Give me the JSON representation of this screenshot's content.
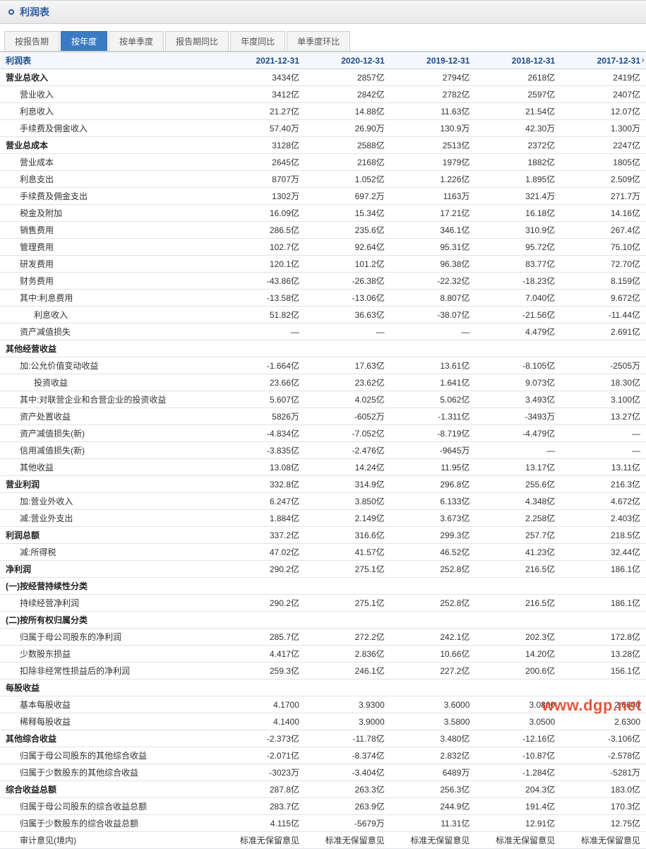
{
  "header": {
    "title": "利润表"
  },
  "tabs": {
    "items": [
      {
        "label": "按报告期",
        "active": false
      },
      {
        "label": "按年度",
        "active": true
      },
      {
        "label": "按单季度",
        "active": false
      },
      {
        "label": "报告期同比",
        "active": false
      },
      {
        "label": "年度同比",
        "active": false
      },
      {
        "label": "单季度环比",
        "active": false
      }
    ]
  },
  "columns": [
    "利润表",
    "2021-12-31",
    "2020-12-31",
    "2019-12-31",
    "2018-12-31",
    "2017-12-31"
  ],
  "col_widths": [
    "34%",
    "13.2%",
    "13.2%",
    "13.2%",
    "13.2%",
    "13.2%"
  ],
  "rows": [
    {
      "label": "营业总收入",
      "indent": 0,
      "bold": true,
      "v": [
        "3434亿",
        "2857亿",
        "2794亿",
        "2618亿",
        "2419亿"
      ]
    },
    {
      "label": "营业收入",
      "indent": 1,
      "v": [
        "3412亿",
        "2842亿",
        "2782亿",
        "2597亿",
        "2407亿"
      ]
    },
    {
      "label": "利息收入",
      "indent": 1,
      "v": [
        "21.27亿",
        "14.88亿",
        "11.63亿",
        "21.54亿",
        "12.07亿"
      ]
    },
    {
      "label": "手续费及佣金收入",
      "indent": 1,
      "v": [
        "57.40万",
        "26.90万",
        "130.9万",
        "42.30万",
        "1.300万"
      ]
    },
    {
      "label": "营业总成本",
      "indent": 0,
      "bold": true,
      "v": [
        "3128亿",
        "2588亿",
        "2513亿",
        "2372亿",
        "2247亿"
      ]
    },
    {
      "label": "营业成本",
      "indent": 1,
      "v": [
        "2645亿",
        "2168亿",
        "1979亿",
        "1882亿",
        "1805亿"
      ]
    },
    {
      "label": "利息支出",
      "indent": 1,
      "v": [
        "8707万",
        "1.052亿",
        "1.226亿",
        "1.895亿",
        "2.509亿"
      ]
    },
    {
      "label": "手续费及佣金支出",
      "indent": 1,
      "v": [
        "1302万",
        "697.2万",
        "1163万",
        "321.4万",
        "271.7万"
      ]
    },
    {
      "label": "税金及附加",
      "indent": 1,
      "v": [
        "16.09亿",
        "15.34亿",
        "17.21亿",
        "16.18亿",
        "14.16亿"
      ]
    },
    {
      "label": "销售费用",
      "indent": 1,
      "v": [
        "286.5亿",
        "235.6亿",
        "346.1亿",
        "310.9亿",
        "267.4亿"
      ]
    },
    {
      "label": "管理费用",
      "indent": 1,
      "v": [
        "102.7亿",
        "92.64亿",
        "95.31亿",
        "95.72亿",
        "75.10亿"
      ]
    },
    {
      "label": "研发费用",
      "indent": 1,
      "v": [
        "120.1亿",
        "101.2亿",
        "96.38亿",
        "83.77亿",
        "72.70亿"
      ]
    },
    {
      "label": "财务费用",
      "indent": 1,
      "v": [
        "-43.86亿",
        "-26.38亿",
        "-22.32亿",
        "-18.23亿",
        "8.159亿"
      ]
    },
    {
      "label": "其中:利息费用",
      "indent": 1,
      "v": [
        "-13.58亿",
        "-13.06亿",
        "8.807亿",
        "7.040亿",
        "9.672亿"
      ]
    },
    {
      "label": "利息收入",
      "indent": 2,
      "v": [
        "51.82亿",
        "36.63亿",
        "-38.07亿",
        "-21.56亿",
        "-11.44亿"
      ]
    },
    {
      "label": "资产减值损失",
      "indent": 1,
      "v": [
        "—",
        "—",
        "—",
        "4.479亿",
        "2.691亿"
      ]
    },
    {
      "label": "其他经营收益",
      "indent": 0,
      "bold": true,
      "v": [
        "",
        "",
        "",
        "",
        ""
      ]
    },
    {
      "label": "加:公允价值变动收益",
      "indent": 1,
      "v": [
        "-1.664亿",
        "17.63亿",
        "13.61亿",
        "-8.105亿",
        "-2505万"
      ]
    },
    {
      "label": "投资收益",
      "indent": 2,
      "v": [
        "23.66亿",
        "23.62亿",
        "1.641亿",
        "9.073亿",
        "18.30亿"
      ]
    },
    {
      "label": "其中:对联营企业和合营企业的投资收益",
      "indent": 1,
      "v": [
        "5.607亿",
        "4.025亿",
        "5.062亿",
        "3.493亿",
        "3.100亿"
      ]
    },
    {
      "label": "资产处置收益",
      "indent": 1,
      "v": [
        "5826万",
        "-6052万",
        "-1.311亿",
        "-3493万",
        "13.27亿"
      ]
    },
    {
      "label": "资产减值损失(新)",
      "indent": 1,
      "v": [
        "-4.834亿",
        "-7.052亿",
        "-8.719亿",
        "-4.479亿",
        "—"
      ]
    },
    {
      "label": "信用减值损失(新)",
      "indent": 1,
      "v": [
        "-3.835亿",
        "-2.476亿",
        "-9645万",
        "—",
        "—"
      ]
    },
    {
      "label": "其他收益",
      "indent": 1,
      "v": [
        "13.08亿",
        "14.24亿",
        "11.95亿",
        "13.17亿",
        "13.11亿"
      ]
    },
    {
      "label": "营业利润",
      "indent": 0,
      "bold": true,
      "v": [
        "332.8亿",
        "314.9亿",
        "296.8亿",
        "255.6亿",
        "216.3亿"
      ]
    },
    {
      "label": "加:营业外收入",
      "indent": 1,
      "v": [
        "6.247亿",
        "3.850亿",
        "6.133亿",
        "4.348亿",
        "4.672亿"
      ]
    },
    {
      "label": "减:营业外支出",
      "indent": 1,
      "v": [
        "1.884亿",
        "2.149亿",
        "3.673亿",
        "2.258亿",
        "2.403亿"
      ]
    },
    {
      "label": "利润总额",
      "indent": 0,
      "bold": true,
      "v": [
        "337.2亿",
        "316.6亿",
        "299.3亿",
        "257.7亿",
        "218.5亿"
      ]
    },
    {
      "label": "减:所得税",
      "indent": 1,
      "v": [
        "47.02亿",
        "41.57亿",
        "46.52亿",
        "41.23亿",
        "32.44亿"
      ]
    },
    {
      "label": "净利润",
      "indent": 0,
      "bold": true,
      "v": [
        "290.2亿",
        "275.1亿",
        "252.8亿",
        "216.5亿",
        "186.1亿"
      ]
    },
    {
      "label": "(一)按经营持续性分类",
      "indent": 0,
      "bold": true,
      "v": [
        "",
        "",
        "",
        "",
        ""
      ]
    },
    {
      "label": "持续经营净利润",
      "indent": 1,
      "v": [
        "290.2亿",
        "275.1亿",
        "252.8亿",
        "216.5亿",
        "186.1亿"
      ]
    },
    {
      "label": "(二)按所有权归属分类",
      "indent": 0,
      "bold": true,
      "v": [
        "",
        "",
        "",
        "",
        ""
      ]
    },
    {
      "label": "归属于母公司股东的净利润",
      "indent": 1,
      "v": [
        "285.7亿",
        "272.2亿",
        "242.1亿",
        "202.3亿",
        "172.8亿"
      ]
    },
    {
      "label": "少数股东损益",
      "indent": 1,
      "v": [
        "4.417亿",
        "2.836亿",
        "10.66亿",
        "14.20亿",
        "13.28亿"
      ]
    },
    {
      "label": "扣除非经常性损益后的净利润",
      "indent": 1,
      "v": [
        "259.3亿",
        "246.1亿",
        "227.2亿",
        "200.6亿",
        "156.1亿"
      ]
    },
    {
      "label": "每股收益",
      "indent": 0,
      "bold": true,
      "v": [
        "",
        "",
        "",
        "",
        ""
      ]
    },
    {
      "label": "基本每股收益",
      "indent": 1,
      "v": [
        "4.1700",
        "3.9300",
        "3.6000",
        "3.0800",
        "2.6600"
      ]
    },
    {
      "label": "稀释每股收益",
      "indent": 1,
      "v": [
        "4.1400",
        "3.9000",
        "3.5800",
        "3.0500",
        "2.6300"
      ]
    },
    {
      "label": "其他综合收益",
      "indent": 0,
      "bold": true,
      "v": [
        "-2.373亿",
        "-11.78亿",
        "3.480亿",
        "-12.16亿",
        "-3.106亿"
      ]
    },
    {
      "label": "归属于母公司股东的其他综合收益",
      "indent": 1,
      "v": [
        "-2.071亿",
        "-8.374亿",
        "2.832亿",
        "-10.87亿",
        "-2.578亿"
      ]
    },
    {
      "label": "归属于少数股东的其他综合收益",
      "indent": 1,
      "v": [
        "-3023万",
        "-3.404亿",
        "6489万",
        "-1.284亿",
        "-5281万"
      ]
    },
    {
      "label": "综合收益总额",
      "indent": 0,
      "bold": true,
      "v": [
        "287.8亿",
        "263.3亿",
        "256.3亿",
        "204.3亿",
        "183.0亿"
      ]
    },
    {
      "label": "归属于母公司股东的综合收益总额",
      "indent": 1,
      "v": [
        "283.7亿",
        "263.9亿",
        "244.9亿",
        "191.4亿",
        "170.3亿"
      ]
    },
    {
      "label": "归属于少数股东的综合收益总额",
      "indent": 1,
      "v": [
        "4.115亿",
        "-5679万",
        "11.31亿",
        "12.91亿",
        "12.75亿"
      ]
    },
    {
      "label": "审计意见(境内)",
      "indent": 1,
      "v": [
        "标准无保留意见",
        "标准无保留意见",
        "标准无保留意见",
        "标准无保留意见",
        "标准无保留意见"
      ]
    }
  ],
  "watermark": "www.dgp.net",
  "colors": {
    "header_text": "#2a5a9e",
    "active_tab_bg": "#3b7bc4",
    "grid_border": "#e0e3e8",
    "th_bg": "#f4f7fb"
  }
}
